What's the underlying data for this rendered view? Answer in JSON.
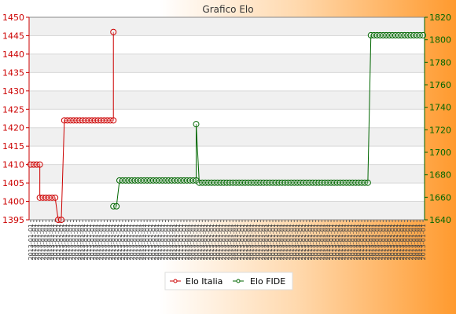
{
  "chart_data": {
    "type": "line",
    "title": "Grafico Elo",
    "legend_position": "bottom",
    "grid": true,
    "x_tick_label_text": "2013-01-01",
    "x_count": 129,
    "y_left": {
      "range": [
        1395,
        1450
      ],
      "ticks": [
        1395,
        1400,
        1405,
        1410,
        1415,
        1420,
        1425,
        1430,
        1435,
        1440,
        1445,
        1450
      ],
      "color": "#cc0000"
    },
    "y_right": {
      "range": [
        1640,
        1820
      ],
      "ticks": [
        1640,
        1660,
        1680,
        1700,
        1720,
        1740,
        1760,
        1780,
        1800,
        1820
      ],
      "color": "#006600"
    },
    "series": [
      {
        "name": "Elo Italia",
        "color": "#cc0000",
        "axis": "left",
        "segments": [
          {
            "from": 0,
            "to": 3,
            "value": 1410
          },
          {
            "from": 3,
            "to": 8,
            "value": 1401
          },
          {
            "from": 9,
            "to": 10,
            "value": 1395
          },
          {
            "from": 11,
            "to": 27,
            "value": 1422
          },
          {
            "from": 27,
            "to": 27,
            "value": 1446
          }
        ]
      },
      {
        "name": "Elo FIDE",
        "color": "#006600",
        "axis": "right",
        "segments": [
          {
            "from": 27,
            "to": 28,
            "value": 1652
          },
          {
            "from": 29,
            "to": 54,
            "value": 1675
          },
          {
            "from": 54,
            "to": 54,
            "value": 1725
          },
          {
            "from": 55,
            "to": 110,
            "value": 1673
          },
          {
            "from": 111,
            "to": 128,
            "value": 1804
          }
        ]
      }
    ]
  }
}
